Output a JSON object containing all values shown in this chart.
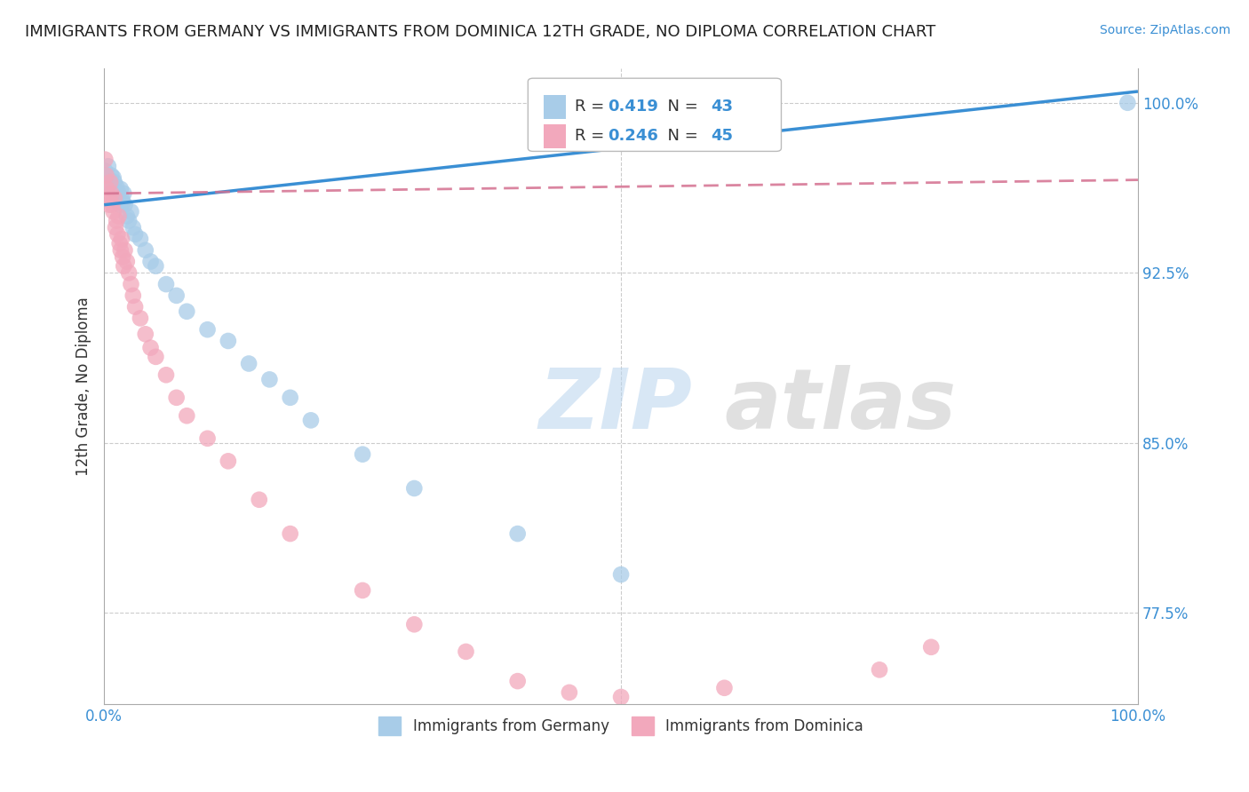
{
  "title": "IMMIGRANTS FROM GERMANY VS IMMIGRANTS FROM DOMINICA 12TH GRADE, NO DIPLOMA CORRELATION CHART",
  "source": "Source: ZipAtlas.com",
  "ylabel": "12th Grade, No Diploma",
  "xlim": [
    0.0,
    1.0
  ],
  "ylim": [
    0.735,
    1.015
  ],
  "xtick_labels": [
    "0.0%",
    "100.0%"
  ],
  "ytick_labels": [
    "77.5%",
    "85.0%",
    "92.5%",
    "100.0%"
  ],
  "ytick_positions": [
    0.775,
    0.85,
    0.925,
    1.0
  ],
  "grid_color": "#cccccc",
  "background_color": "#ffffff",
  "watermark_zip": "ZIP",
  "watermark_atlas": "atlas",
  "legend_germany": "Immigrants from Germany",
  "legend_dominica": "Immigrants from Dominica",
  "R_germany": 0.419,
  "N_germany": 43,
  "R_dominica": 0.246,
  "N_dominica": 45,
  "germany_color": "#a8cce8",
  "dominica_color": "#f2a8bc",
  "germany_line_color": "#3a8fd4",
  "dominica_line_color": "#d47090",
  "title_fontsize": 13,
  "source_fontsize": 10,
  "germany_x": [
    0.001,
    0.002,
    0.003,
    0.004,
    0.005,
    0.006,
    0.007,
    0.008,
    0.009,
    0.01,
    0.011,
    0.012,
    0.013,
    0.014,
    0.015,
    0.016,
    0.017,
    0.018,
    0.019,
    0.02,
    0.022,
    0.024,
    0.026,
    0.028,
    0.03,
    0.035,
    0.04,
    0.045,
    0.05,
    0.06,
    0.07,
    0.08,
    0.1,
    0.12,
    0.14,
    0.16,
    0.18,
    0.2,
    0.25,
    0.3,
    0.4,
    0.5,
    0.99
  ],
  "germany_y": [
    0.97,
    0.968,
    0.965,
    0.972,
    0.966,
    0.964,
    0.968,
    0.963,
    0.967,
    0.965,
    0.961,
    0.963,
    0.958,
    0.96,
    0.955,
    0.962,
    0.958,
    0.956,
    0.96,
    0.955,
    0.95,
    0.948,
    0.952,
    0.945,
    0.942,
    0.94,
    0.935,
    0.93,
    0.928,
    0.92,
    0.915,
    0.908,
    0.9,
    0.895,
    0.885,
    0.878,
    0.87,
    0.86,
    0.845,
    0.83,
    0.81,
    0.792,
    1.0
  ],
  "dominica_x": [
    0.001,
    0.002,
    0.003,
    0.004,
    0.005,
    0.006,
    0.007,
    0.008,
    0.009,
    0.01,
    0.011,
    0.012,
    0.013,
    0.014,
    0.015,
    0.016,
    0.017,
    0.018,
    0.019,
    0.02,
    0.022,
    0.024,
    0.026,
    0.028,
    0.03,
    0.035,
    0.04,
    0.045,
    0.05,
    0.06,
    0.07,
    0.08,
    0.1,
    0.12,
    0.15,
    0.18,
    0.25,
    0.3,
    0.35,
    0.4,
    0.45,
    0.5,
    0.6,
    0.75,
    0.8
  ],
  "dominica_y": [
    0.975,
    0.968,
    0.962,
    0.958,
    0.955,
    0.965,
    0.96,
    0.955,
    0.952,
    0.958,
    0.945,
    0.948,
    0.942,
    0.95,
    0.938,
    0.935,
    0.94,
    0.932,
    0.928,
    0.935,
    0.93,
    0.925,
    0.92,
    0.915,
    0.91,
    0.905,
    0.898,
    0.892,
    0.888,
    0.88,
    0.87,
    0.862,
    0.852,
    0.842,
    0.825,
    0.81,
    0.785,
    0.77,
    0.758,
    0.745,
    0.74,
    0.738,
    0.742,
    0.75,
    0.76
  ]
}
